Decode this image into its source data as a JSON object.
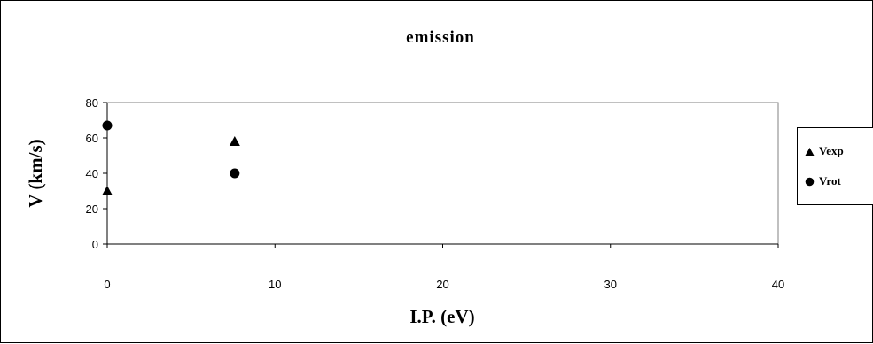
{
  "chart_data": {
    "type": "scatter",
    "title": "emission",
    "xlabel": "I.P. (eV)",
    "ylabel": "V (km/s)",
    "xlim": [
      0,
      40
    ],
    "ylim": [
      0,
      80
    ],
    "xticks": [
      "0",
      "10",
      "20",
      "30",
      "40"
    ],
    "yticks": [
      "0",
      "20",
      "40",
      "60",
      "80"
    ],
    "grid": false,
    "legend_position": "right",
    "series": [
      {
        "name": "Vexp",
        "marker": "triangle",
        "x": [
          0,
          7.6
        ],
        "y": [
          30,
          58
        ]
      },
      {
        "name": "Vrot",
        "marker": "circle",
        "x": [
          0,
          7.6
        ],
        "y": [
          67,
          40
        ]
      }
    ]
  },
  "colors": {
    "marker": "#000000",
    "axis": "#000000",
    "background": "#ffffff"
  }
}
